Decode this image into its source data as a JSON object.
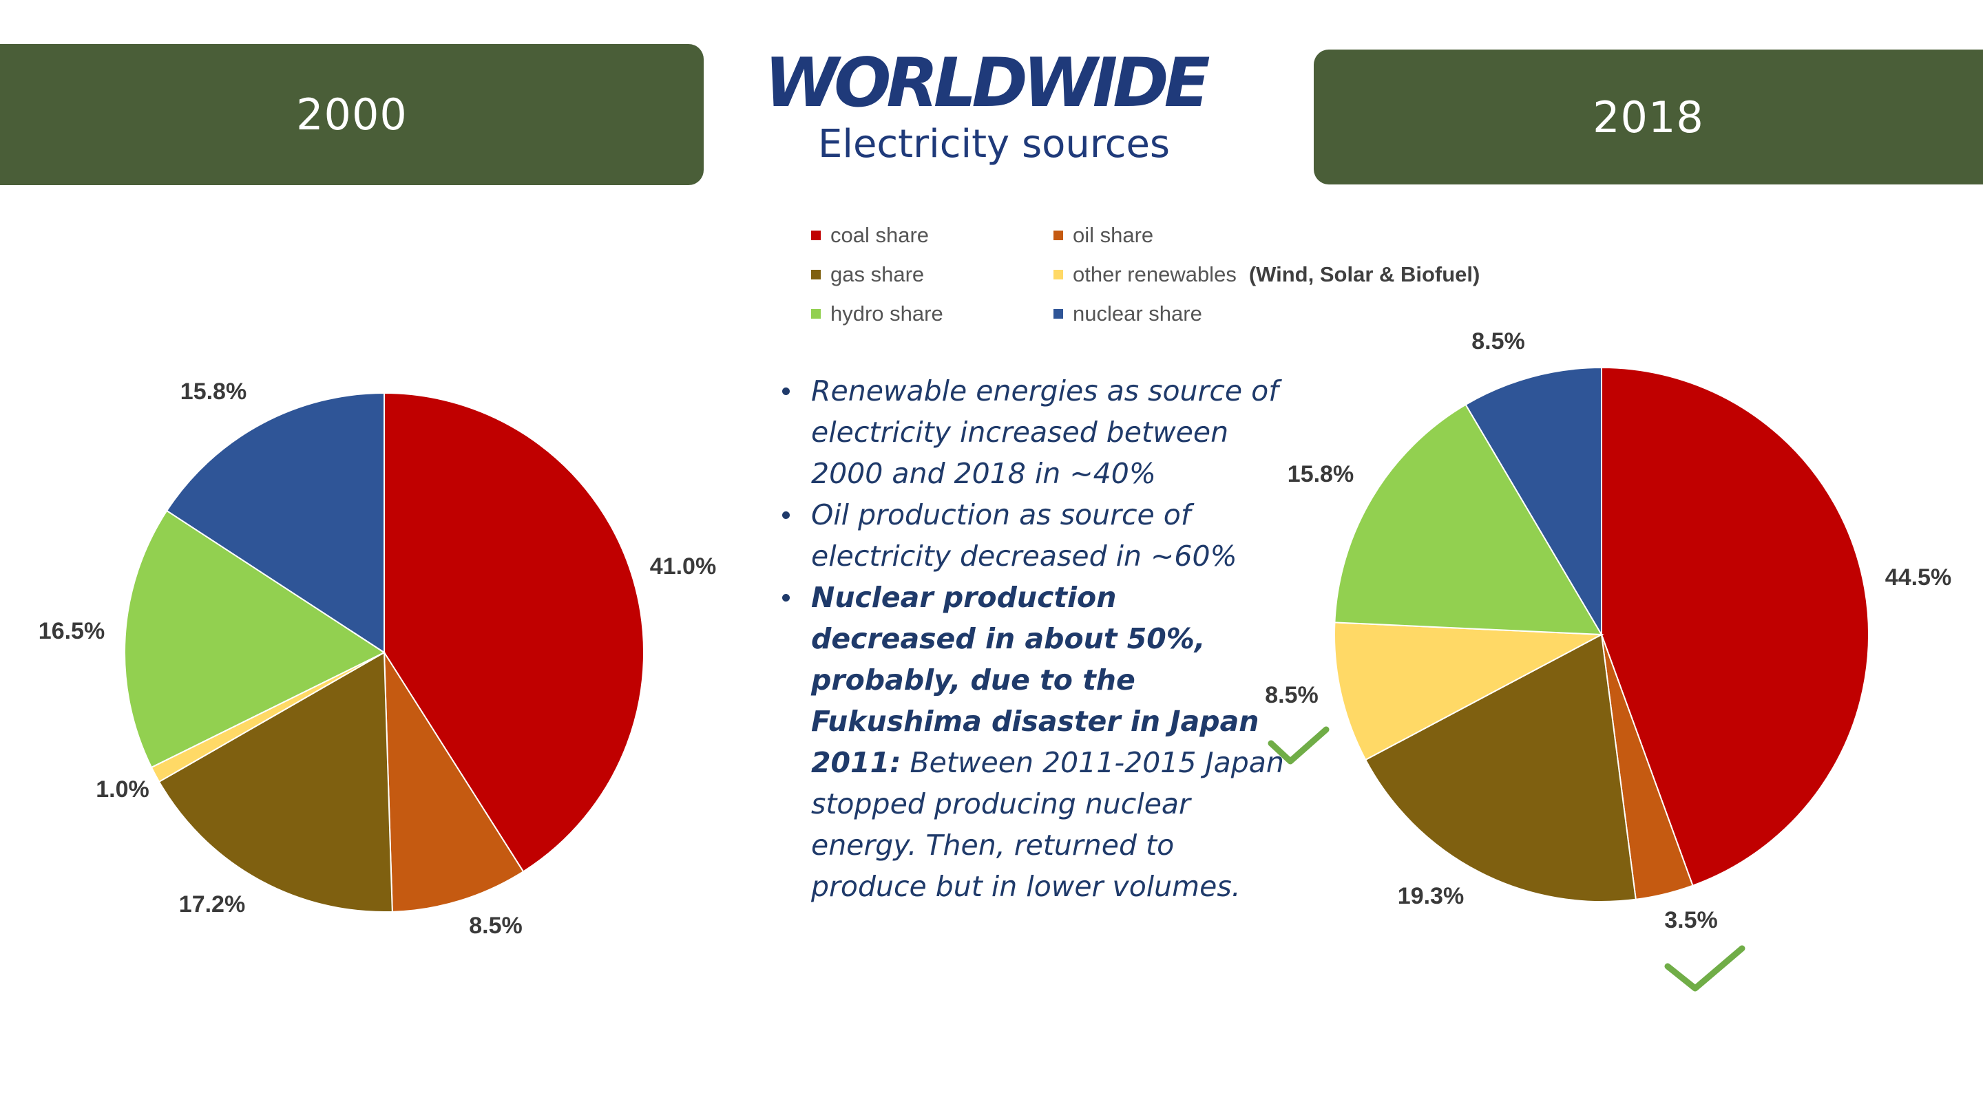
{
  "header": {
    "left_year": "2000",
    "right_year": "2018",
    "title": "WORLDWIDE",
    "subtitle": "Electricity sources"
  },
  "legend": {
    "items": [
      {
        "label": "coal share",
        "color": "#c00000"
      },
      {
        "label": "oil share",
        "color": "#c55a11"
      },
      {
        "label": "gas share",
        "color": "#7f6010"
      },
      {
        "label": "other renewables",
        "color": "#ffd966",
        "note": "(Wind, Solar & Biofuel)"
      },
      {
        "label": "hydro share",
        "color": "#92d050"
      },
      {
        "label": "nuclear share",
        "color": "#2f5597"
      }
    ]
  },
  "bullets": [
    {
      "bold": "",
      "text": "Renewable energies as source of electricity increased between 2000 and 2018 in ~40%"
    },
    {
      "bold": "",
      "text": "Oil production as source of electricity decreased in ~60%"
    },
    {
      "bold": "Nuclear production decreased in about 50%, probably, due to the Fukushima disaster in Japan 2011:",
      "text": " Between 2011-2015 Japan stopped producing nuclear energy. Then, returned to produce but in lower volumes."
    }
  ],
  "check_color": "#70ad47",
  "chart_data": [
    {
      "type": "pie",
      "title": "2000",
      "categories": [
        "coal share",
        "oil share",
        "gas share",
        "other renewables",
        "hydro share",
        "nuclear share"
      ],
      "values": [
        41.0,
        8.5,
        17.2,
        1.0,
        16.5,
        15.8
      ],
      "labels": [
        "41.0%",
        "8.5%",
        "17.2%",
        "1.0%",
        "16.5%",
        "15.8%"
      ]
    },
    {
      "type": "pie",
      "title": "2018",
      "categories": [
        "coal share",
        "oil share",
        "gas share",
        "other renewables",
        "hydro share",
        "nuclear share"
      ],
      "values": [
        44.5,
        3.5,
        19.3,
        8.5,
        15.8,
        8.5
      ],
      "labels": [
        "44.5%",
        "3.5%",
        "19.3%",
        "8.5%",
        "15.8%",
        "8.5%"
      ]
    }
  ]
}
